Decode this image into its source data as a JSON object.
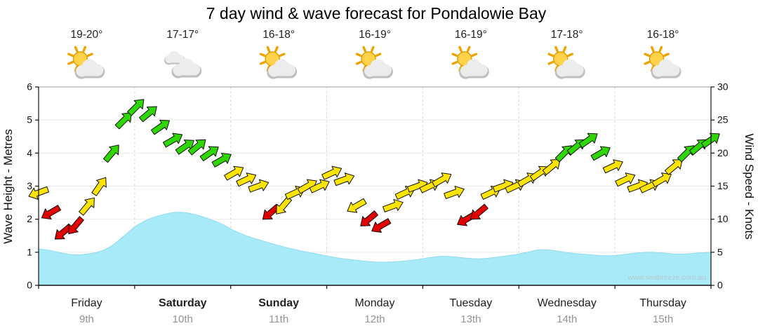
{
  "title": "7 day wind & wave forecast for Pondalowie Bay",
  "watermark": "www.seabreeze.com.au",
  "axes": {
    "left_label": "Wave Height - Metres",
    "right_label": "Wind Speed - Knots",
    "wave_min": 0,
    "wave_max": 6,
    "wave_tick_step": 1,
    "wind_min": 0,
    "wind_max": 30,
    "wind_tick_step": 5
  },
  "days": [
    {
      "name": "Friday",
      "date": "9th",
      "temp": "19-20°",
      "icon": "sun-cloud",
      "bold": false
    },
    {
      "name": "Saturday",
      "date": "10th",
      "temp": "17-17°",
      "icon": "cloud",
      "bold": true
    },
    {
      "name": "Sunday",
      "date": "11th",
      "temp": "16-18°",
      "icon": "sun-cloud",
      "bold": true
    },
    {
      "name": "Monday",
      "date": "12th",
      "temp": "16-19°",
      "icon": "sun-cloud",
      "bold": false
    },
    {
      "name": "Tuesday",
      "date": "13th",
      "temp": "16-19°",
      "icon": "sun-cloud",
      "bold": false
    },
    {
      "name": "Wednesday",
      "date": "14th",
      "temp": "17-18°",
      "icon": "sun-cloud",
      "bold": false
    },
    {
      "name": "Thursday",
      "date": "15th",
      "temp": "16-18°",
      "icon": "sun-cloud",
      "bold": false
    }
  ],
  "colors": {
    "wave_fill": "#a9eaf9",
    "wave_edge": "#8edcf0",
    "wind_low": "#e00000",
    "wind_mid": "#ffe400",
    "wind_high": "#2fd600",
    "arrow_outline": "#111111"
  },
  "chart_data": {
    "type": "area+wind-arrows",
    "hours_per_step": 3,
    "x_days": [
      "Friday 9th",
      "Saturday 10th",
      "Sunday 11th",
      "Monday 12th",
      "Tuesday 13th",
      "Wednesday 14th",
      "Thursday 15th"
    ],
    "wave_axis_range": [
      0,
      6
    ],
    "wind_axis_range": [
      0,
      30
    ],
    "wave_height_m": [
      1.1,
      1.05,
      0.97,
      0.92,
      0.95,
      1.02,
      1.2,
      1.5,
      1.8,
      2.0,
      2.12,
      2.2,
      2.2,
      2.12,
      2.0,
      1.85,
      1.65,
      1.5,
      1.38,
      1.27,
      1.17,
      1.08,
      1.0,
      0.93,
      0.86,
      0.8,
      0.76,
      0.72,
      0.7,
      0.71,
      0.74,
      0.78,
      0.84,
      0.88,
      0.86,
      0.82,
      0.8,
      0.83,
      0.88,
      0.93,
      1.0,
      1.08,
      1.06,
      1.0,
      0.96,
      0.93,
      0.9,
      0.9,
      0.94,
      0.98,
      1.0,
      0.98,
      0.95,
      0.95,
      0.98,
      1.0
    ],
    "wind_speed_knots": [
      14,
      11,
      8,
      9,
      12,
      15,
      20,
      25,
      27,
      26,
      24,
      22,
      21,
      21,
      20,
      19,
      17,
      16,
      15,
      11,
      12,
      14,
      15,
      15,
      17,
      16,
      12,
      10,
      9,
      12,
      14,
      15,
      15,
      16,
      14,
      10,
      11,
      14,
      15,
      15,
      16,
      17,
      18,
      20,
      21,
      22,
      20,
      18,
      16,
      15,
      15,
      16,
      18,
      20,
      21,
      22
    ],
    "wind_dir_deg": [
      160,
      150,
      140,
      130,
      -50,
      -55,
      -50,
      -45,
      -45,
      -40,
      -35,
      -30,
      -35,
      -40,
      -35,
      -30,
      -30,
      -25,
      -20,
      140,
      130,
      -25,
      -30,
      -25,
      -25,
      -20,
      150,
      140,
      150,
      -20,
      -25,
      -20,
      -25,
      -30,
      -20,
      150,
      140,
      -25,
      -20,
      -25,
      -30,
      -35,
      -40,
      -45,
      -40,
      -35,
      -30,
      -25,
      -25,
      -20,
      -25,
      -30,
      -40,
      -45,
      -40,
      -35
    ],
    "wind_color_thresholds": {
      "red_max": 11,
      "green_min": 19
    }
  }
}
